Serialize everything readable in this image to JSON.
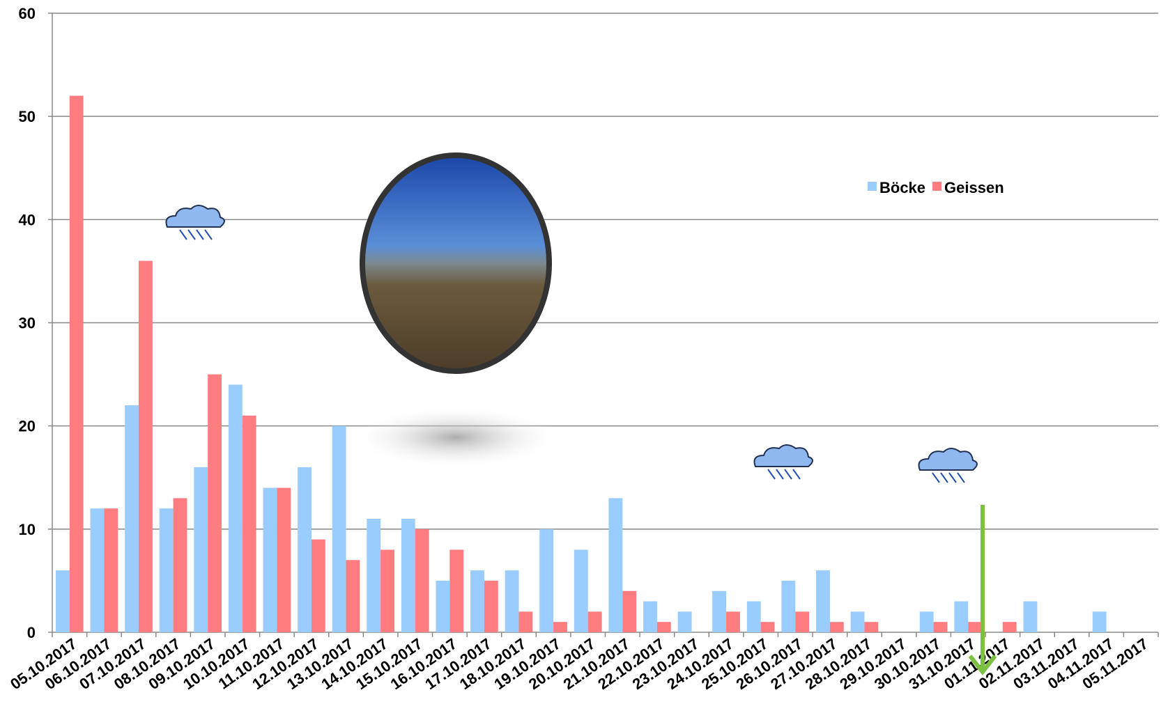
{
  "chart_data": {
    "type": "bar",
    "categories": [
      "05.10.2017",
      "06.10.2017",
      "07.10.2017",
      "08.10.2017",
      "09.10.2017",
      "10.10.2017",
      "11.10.2017",
      "12.10.2017",
      "13.10.2017",
      "14.10.2017",
      "15.10.2017",
      "16.10.2017",
      "17.10.2017",
      "18.10.2017",
      "19.10.2017",
      "20.10.2017",
      "21.10.2017",
      "22.10.2017",
      "23.10.2017",
      "24.10.2017",
      "25.10.2017",
      "26.10.2017",
      "27.10.2017",
      "28.10.2017",
      "29.10.2017",
      "30.10.2017",
      "31.10.2017",
      "01.11.2017",
      "02.11.2017",
      "03.11.2017",
      "04.11.2017",
      "05.11.2017"
    ],
    "series": [
      {
        "name": "Böcke",
        "color": "#99ccff",
        "values": [
          6,
          12,
          22,
          12,
          16,
          24,
          14,
          16,
          20,
          11,
          11,
          5,
          6,
          6,
          10,
          8,
          13,
          3,
          2,
          4,
          3,
          5,
          6,
          2,
          0,
          2,
          3,
          0,
          3,
          0,
          2,
          0
        ]
      },
      {
        "name": "Geissen",
        "color": "#ff7c80",
        "values": [
          52,
          12,
          36,
          13,
          25,
          21,
          14,
          9,
          7,
          8,
          10,
          8,
          5,
          2,
          1,
          2,
          4,
          1,
          0,
          2,
          1,
          2,
          1,
          1,
          0,
          1,
          1,
          1,
          0,
          0,
          0,
          0
        ]
      }
    ],
    "ylim": [
      0,
      60
    ],
    "yticks": [
      0,
      10,
      20,
      30,
      40,
      50,
      60
    ],
    "grid": true
  }
}
